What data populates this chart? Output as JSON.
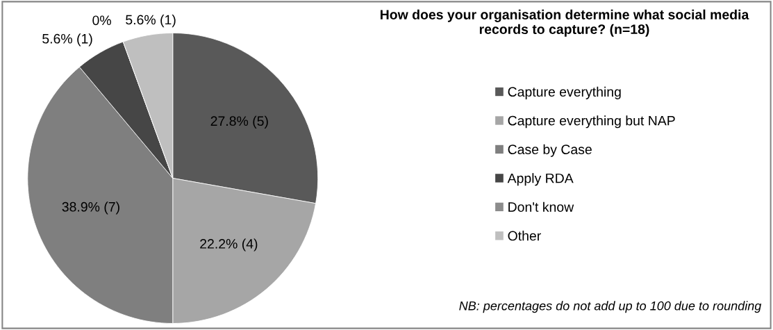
{
  "chart_data": {
    "type": "pie",
    "title": "How does your organisation determine what social media\nrecords to capture? (n=18)",
    "categories": [
      "Capture everything",
      "Capture everything but NAP",
      "Case by Case",
      "Apply RDA",
      "Don't know",
      "Other"
    ],
    "values": [
      5,
      4,
      7,
      1,
      0,
      1
    ],
    "value_labels": [
      "27.8% (5)",
      "22.2% (4)",
      "38.9% (7)",
      "5.6% (1)",
      "0%",
      "5.6% (1)"
    ],
    "colors": [
      "#595959",
      "#a6a6a6",
      "#7f7f7f",
      "#464646",
      "#8c8c8c",
      "#bfbfbf"
    ],
    "legend": "right",
    "annotations": [
      "NB: percentages do not add up to 100 due to rounding"
    ]
  }
}
